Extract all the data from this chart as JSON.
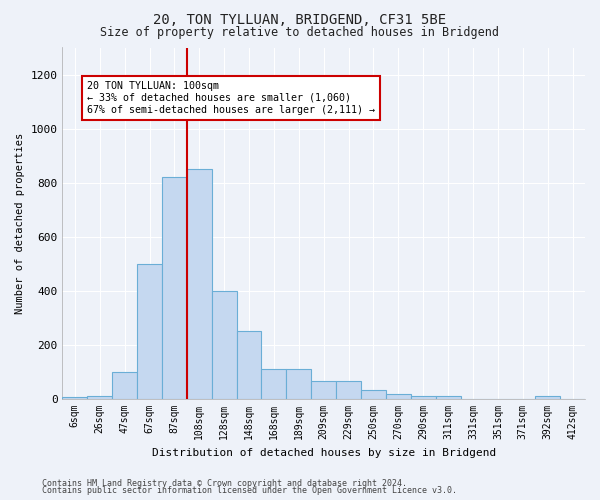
{
  "title": "20, TON TYLLUAN, BRIDGEND, CF31 5BE",
  "subtitle": "Size of property relative to detached houses in Bridgend",
  "xlabel": "Distribution of detached houses by size in Bridgend",
  "ylabel": "Number of detached properties",
  "bar_labels": [
    "6sqm",
    "26sqm",
    "47sqm",
    "67sqm",
    "87sqm",
    "108sqm",
    "128sqm",
    "148sqm",
    "168sqm",
    "189sqm",
    "209sqm",
    "229sqm",
    "250sqm",
    "270sqm",
    "290sqm",
    "311sqm",
    "331sqm",
    "351sqm",
    "371sqm",
    "392sqm",
    "412sqm"
  ],
  "bar_values": [
    8,
    12,
    100,
    500,
    820,
    850,
    400,
    250,
    112,
    112,
    65,
    65,
    32,
    20,
    12,
    12,
    0,
    0,
    0,
    10,
    0
  ],
  "bar_color": "#c5d8f0",
  "bar_edgecolor": "#6aaed6",
  "vline_bin_index": 4,
  "annotation_line1": "20 TON TYLLUAN: 100sqm",
  "annotation_line2": "← 33% of detached houses are smaller (1,060)",
  "annotation_line3": "67% of semi-detached houses are larger (2,111) →",
  "annotation_box_color": "#ffffff",
  "annotation_border_color": "#cc0000",
  "vline_color": "#cc0000",
  "background_color": "#eef2f9",
  "grid_color": "#ffffff",
  "ylim": [
    0,
    1300
  ],
  "yticks": [
    0,
    200,
    400,
    600,
    800,
    1000,
    1200
  ],
  "footer1": "Contains HM Land Registry data © Crown copyright and database right 2024.",
  "footer2": "Contains public sector information licensed under the Open Government Licence v3.0."
}
